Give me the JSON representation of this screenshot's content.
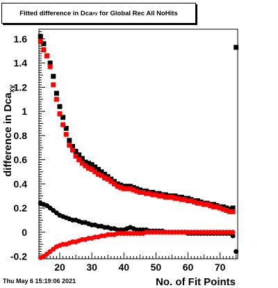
{
  "title": {
    "main": "Fitted difference in Dca",
    "sub": "xy",
    "rest": " for Global Rec All NoHits"
  },
  "stamp": "Thu May  6 15:19:06 2021",
  "chart_data": {
    "type": "scatter",
    "title": "Fitted difference in Dca_xy for Global Rec All NoHits",
    "xlabel": "No. of Fit Points",
    "ylabel": "difference in Dca",
    "ylabel_sub": "xy",
    "xlim": [
      13.5,
      75.5
    ],
    "ylim": [
      -0.22,
      1.68
    ],
    "x_ticks": [
      20,
      30,
      40,
      50,
      60,
      70
    ],
    "y_ticks": [
      -0.2,
      0,
      0.2,
      0.4,
      0.6,
      0.8,
      1,
      1.2,
      1.4,
      1.6
    ],
    "x_tick_labels": [
      "20",
      "30",
      "40",
      "50",
      "60",
      "70"
    ],
    "y_tick_labels": [
      "-0.2",
      "0",
      "0.2",
      "0.4",
      "0.6",
      "0.8",
      "1",
      "1.2",
      "1.4",
      "1.6"
    ],
    "series": [
      {
        "marker": "square",
        "color": "#000000",
        "x": [
          14,
          15,
          16,
          17,
          18,
          19,
          20,
          21,
          22,
          23,
          24,
          25,
          26,
          27,
          28,
          29,
          30,
          31,
          32,
          33,
          34,
          35,
          36,
          37,
          38,
          39,
          40,
          41,
          42,
          43,
          44,
          45,
          46,
          47,
          48,
          49,
          50,
          51,
          52,
          53,
          54,
          55,
          56,
          57,
          58,
          59,
          60,
          61,
          62,
          63,
          64,
          65,
          66,
          67,
          68,
          69,
          70,
          71,
          72,
          73,
          74,
          75
        ],
        "y": [
          1.62,
          1.56,
          1.46,
          1.4,
          1.29,
          1.15,
          1.04,
          0.95,
          0.86,
          0.76,
          0.71,
          0.67,
          0.64,
          0.61,
          0.58,
          0.57,
          0.56,
          0.54,
          0.52,
          0.5,
          0.48,
          0.46,
          0.44,
          0.42,
          0.4,
          0.39,
          0.38,
          0.38,
          0.38,
          0.37,
          0.36,
          0.35,
          0.34,
          0.34,
          0.33,
          0.33,
          0.32,
          0.32,
          0.31,
          0.31,
          0.3,
          0.3,
          0.3,
          0.29,
          0.29,
          0.28,
          0.28,
          0.27,
          0.26,
          0.26,
          0.25,
          0.24,
          0.24,
          0.23,
          0.23,
          0.22,
          0.21,
          0.21,
          0.2,
          0.19,
          0.2,
          1.53
        ]
      },
      {
        "marker": "square",
        "color": "#ff0000",
        "x": [
          14,
          15,
          16,
          17,
          18,
          19,
          20,
          21,
          22,
          23,
          24,
          25,
          26,
          27,
          28,
          29,
          30,
          31,
          32,
          33,
          34,
          35,
          36,
          37,
          38,
          39,
          40,
          41,
          42,
          43,
          44,
          45,
          46,
          47,
          48,
          49,
          50,
          51,
          52,
          53,
          54,
          55,
          56,
          57,
          58,
          59,
          60,
          61,
          62,
          63,
          64,
          65,
          66,
          67,
          68,
          69,
          70,
          71,
          72,
          73,
          74
        ],
        "y": [
          1.58,
          1.51,
          1.46,
          1.37,
          1.22,
          1.1,
          0.98,
          0.89,
          0.81,
          0.72,
          0.68,
          0.63,
          0.6,
          0.57,
          0.55,
          0.53,
          0.52,
          0.5,
          0.48,
          0.47,
          0.45,
          0.44,
          0.42,
          0.4,
          0.38,
          0.37,
          0.36,
          0.36,
          0.36,
          0.35,
          0.34,
          0.33,
          0.33,
          0.32,
          0.32,
          0.31,
          0.31,
          0.3,
          0.3,
          0.29,
          0.29,
          0.29,
          0.28,
          0.28,
          0.27,
          0.27,
          0.26,
          0.26,
          0.25,
          0.24,
          0.24,
          0.23,
          0.23,
          0.22,
          0.21,
          0.21,
          0.2,
          0.19,
          0.18,
          0.17,
          0.17
        ]
      },
      {
        "marker": "circle",
        "color": "#000000",
        "x": [
          14,
          15,
          16,
          17,
          18,
          19,
          20,
          21,
          22,
          23,
          24,
          25,
          26,
          27,
          28,
          29,
          30,
          31,
          32,
          33,
          34,
          35,
          36,
          37,
          38,
          39,
          40,
          41,
          42,
          43,
          44,
          45,
          46,
          47,
          48,
          49,
          50,
          51,
          52,
          53,
          54,
          55,
          56,
          57,
          58,
          59,
          60,
          61,
          62,
          63,
          64,
          65,
          66,
          67,
          68,
          69,
          70,
          71,
          72,
          73,
          74,
          75
        ],
        "y": [
          0.24,
          0.23,
          0.22,
          0.2,
          0.18,
          0.16,
          0.14,
          0.13,
          0.12,
          0.11,
          0.1,
          0.1,
          0.09,
          0.08,
          0.08,
          0.07,
          0.06,
          0.06,
          0.05,
          0.05,
          0.04,
          0.04,
          0.03,
          0.03,
          0.02,
          0.02,
          0.02,
          0.03,
          0.04,
          0.03,
          0.02,
          0.02,
          0.02,
          0.02,
          0.01,
          0.01,
          0.01,
          0.01,
          0.01,
          0.0,
          0.0,
          0.0,
          0.0,
          0.0,
          0.0,
          0.0,
          -0.01,
          -0.01,
          -0.01,
          -0.01,
          -0.01,
          -0.01,
          -0.01,
          -0.01,
          -0.01,
          -0.01,
          -0.01,
          -0.01,
          -0.01,
          -0.01,
          -0.03,
          -0.16
        ]
      },
      {
        "marker": "circle",
        "color": "#ff0000",
        "x": [
          14,
          15,
          16,
          17,
          18,
          19,
          20,
          21,
          22,
          23,
          24,
          25,
          26,
          27,
          28,
          29,
          30,
          31,
          32,
          33,
          34,
          35,
          36,
          37,
          38,
          39,
          40,
          41,
          42,
          43,
          44,
          45,
          46,
          47,
          48,
          49,
          50,
          51,
          52,
          53,
          54,
          55,
          56,
          57,
          58,
          59,
          60,
          61,
          62,
          63,
          64,
          65,
          66,
          67,
          68,
          69,
          70,
          71,
          72,
          73,
          74
        ],
        "y": [
          -0.21,
          -0.2,
          -0.18,
          -0.16,
          -0.14,
          -0.12,
          -0.11,
          -0.1,
          -0.1,
          -0.09,
          -0.08,
          -0.08,
          -0.07,
          -0.06,
          -0.06,
          -0.05,
          -0.05,
          -0.04,
          -0.04,
          -0.03,
          -0.03,
          -0.02,
          -0.02,
          -0.02,
          -0.01,
          -0.01,
          -0.01,
          -0.01,
          -0.01,
          -0.01,
          -0.01,
          -0.01,
          -0.01,
          0.0,
          0.0,
          0.0,
          0.0,
          0.0,
          0.0,
          0.0,
          0.0,
          0.0,
          0.0,
          0.0,
          0.0,
          0.0,
          0.0,
          0.0,
          0.0,
          0.0,
          0.0,
          0.0,
          0.0,
          0.0,
          0.0,
          0.0,
          0.0,
          0.0,
          0.0,
          0.0,
          0.0
        ]
      }
    ]
  }
}
